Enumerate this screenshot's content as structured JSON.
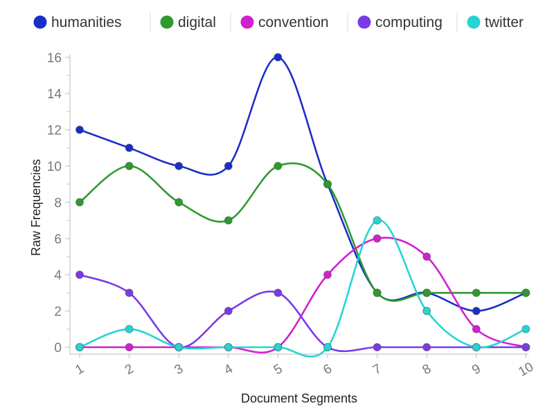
{
  "chart_data": {
    "type": "line",
    "curve": "smooth",
    "xlabel": "Document Segments",
    "ylabel": "Raw Frequencies",
    "categories": [
      "1",
      "2",
      "3",
      "4",
      "5",
      "6",
      "7",
      "8",
      "9",
      "10"
    ],
    "ylim": [
      0,
      16
    ],
    "yticks": [
      "0",
      "2",
      "4",
      "6",
      "8",
      "10",
      "12",
      "14",
      "16"
    ],
    "legend_position": "top",
    "series": [
      {
        "name": "humanities",
        "color": "#1a2ec8",
        "values": [
          12,
          11,
          10,
          10,
          16,
          9,
          3,
          3,
          2,
          3
        ]
      },
      {
        "name": "digital",
        "color": "#2e9a2e",
        "values": [
          8,
          10,
          8,
          7,
          10,
          9,
          3,
          3,
          3,
          3
        ]
      },
      {
        "name": "convention",
        "color": "#d020d0",
        "values": [
          0,
          0,
          0,
          0,
          0,
          4,
          6,
          5,
          1,
          0
        ]
      },
      {
        "name": "computing",
        "color": "#7a3ae8",
        "values": [
          4,
          3,
          0,
          2,
          3,
          0,
          0,
          0,
          0,
          0
        ]
      },
      {
        "name": "twitter",
        "color": "#26d4d4",
        "values": [
          0,
          1,
          0,
          0,
          0,
          0,
          7,
          2,
          0,
          1
        ]
      }
    ]
  }
}
